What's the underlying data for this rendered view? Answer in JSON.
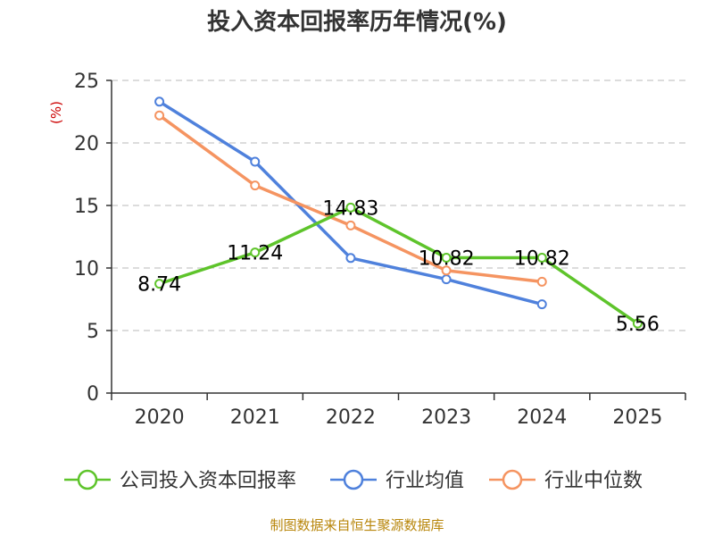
{
  "chart_data": {
    "type": "line",
    "title": "投入资本回报率历年情况(%)",
    "ylabel": "(%)",
    "xlabel": "",
    "categories": [
      "2020",
      "2021",
      "2022",
      "2023",
      "2024",
      "2025"
    ],
    "ylim": [
      0,
      25
    ],
    "yticks": [
      0,
      5,
      10,
      15,
      20,
      25
    ],
    "grid": true,
    "legend_position": "bottom",
    "series": [
      {
        "name": "公司投入资本回报率",
        "color": "#5ec42b",
        "values": [
          8.74,
          11.24,
          14.83,
          10.82,
          10.82,
          5.56
        ],
        "labels": [
          "8.74",
          "11.24",
          "14.83",
          "10.82",
          "10.82",
          "5.56"
        ]
      },
      {
        "name": "行业均值",
        "color": "#4f81dc",
        "values": [
          23.3,
          18.5,
          10.8,
          9.1,
          7.1,
          null
        ]
      },
      {
        "name": "行业中位数",
        "color": "#f59461",
        "values": [
          22.2,
          16.6,
          13.4,
          9.8,
          8.9,
          null
        ]
      }
    ]
  },
  "source": "制图数据来自恒生聚源数据库"
}
